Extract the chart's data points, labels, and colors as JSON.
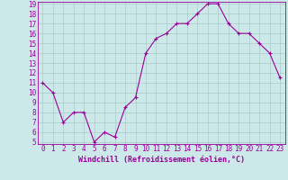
{
  "x": [
    0,
    1,
    2,
    3,
    4,
    5,
    6,
    7,
    8,
    9,
    10,
    11,
    12,
    13,
    14,
    15,
    16,
    17,
    18,
    19,
    20,
    21,
    22,
    23
  ],
  "y": [
    11,
    10,
    7,
    8,
    8,
    5,
    6,
    5.5,
    8.5,
    9.5,
    14,
    15.5,
    16,
    17,
    17,
    18,
    19,
    19,
    17,
    16,
    16,
    15,
    14,
    11.5
  ],
  "line_color": "#990099",
  "marker": "+",
  "marker_size": 3,
  "marker_linewidth": 0.8,
  "bg_color": "#cce8e8",
  "grid_color": "#aacccc",
  "xlabel": "Windchill (Refroidissement éolien,°C)",
  "xlabel_color": "#990099",
  "tick_color": "#990099",
  "ylim": [
    5,
    19
  ],
  "xlim": [
    -0.5,
    23.5
  ],
  "yticks": [
    5,
    6,
    7,
    8,
    9,
    10,
    11,
    12,
    13,
    14,
    15,
    16,
    17,
    18,
    19
  ],
  "xticks": [
    0,
    1,
    2,
    3,
    4,
    5,
    6,
    7,
    8,
    9,
    10,
    11,
    12,
    13,
    14,
    15,
    16,
    17,
    18,
    19,
    20,
    21,
    22,
    23
  ],
  "label_fontsize": 6,
  "tick_fontsize": 5.5
}
